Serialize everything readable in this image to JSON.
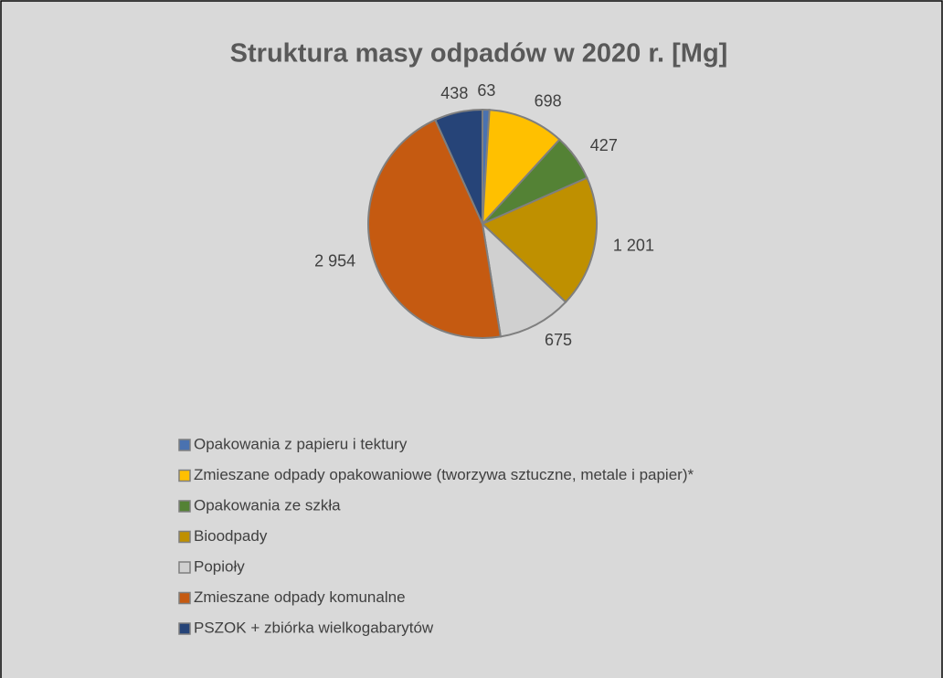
{
  "chart_data": {
    "type": "pie",
    "title": "Struktura masy odpadów w 2020 r. [Mg]",
    "categories": [
      "Opakowania z papieru i tektury",
      "Zmieszane odpady opakowaniowe (tworzywa sztuczne, metale i papier)*",
      "Opakowania ze szkła",
      "Bioodpady",
      "Popioły",
      "Zmieszane odpady komunalne",
      "PSZOK + zbiórka wielkogabarytów"
    ],
    "values": [
      63,
      698,
      427,
      1201,
      675,
      2954,
      438
    ],
    "value_labels": [
      "63",
      "698",
      "427",
      "1 201",
      "675",
      "2 954",
      "438"
    ],
    "colors": [
      "#4a72b0",
      "#ffc000",
      "#548235",
      "#bf9000",
      "#d0d0d0",
      "#c55a11",
      "#264478"
    ],
    "legend": "bottom"
  }
}
